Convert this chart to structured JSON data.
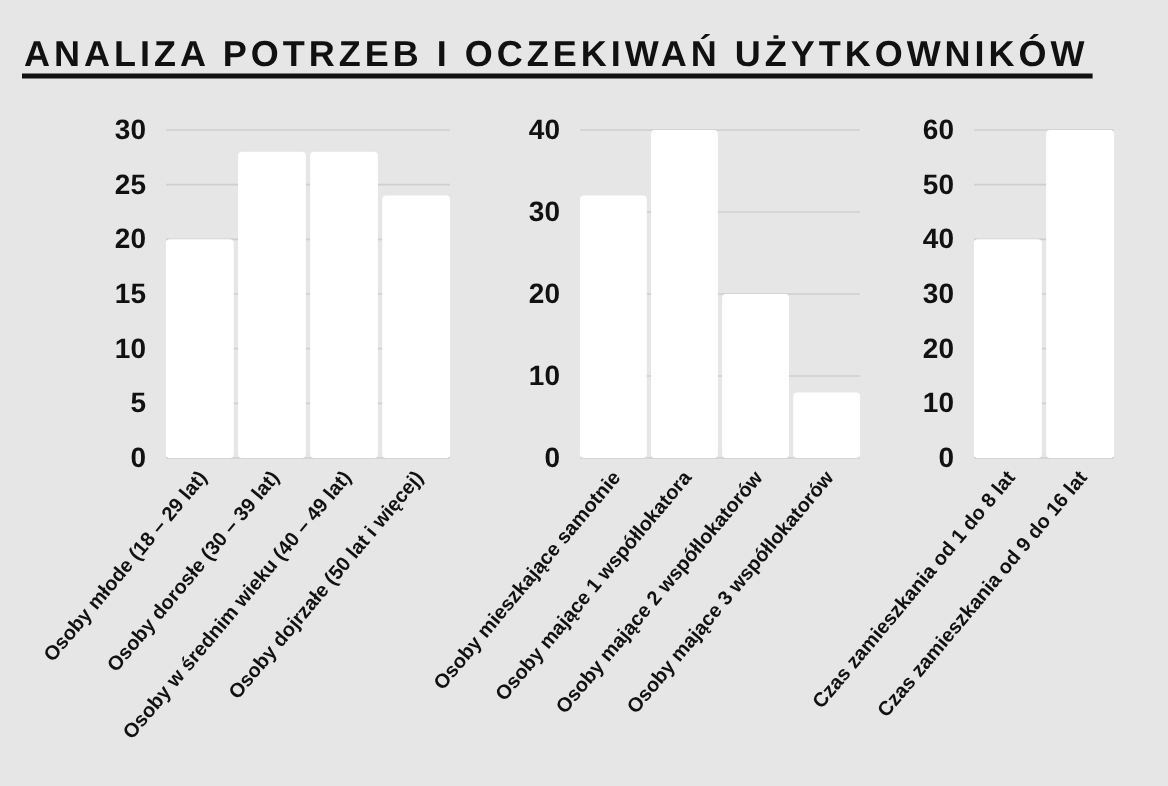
{
  "chart_data": [
    {
      "type": "bar",
      "title": "ANALIZA POTRZEB I OCZEKIWAŃ UŻYTKOWNIKÓW",
      "categories": [
        "Osoby młode (18 – 29 lat)",
        "Osoby dorosłe (30 – 39 lat)",
        "Osoby w średnim wieku (40 – 49 lat)",
        "Osoby dojrzałe (50 lat i więcej)"
      ],
      "values": [
        20,
        28,
        28,
        24
      ],
      "color": "#ffffff",
      "ylim": [
        0,
        30
      ],
      "yticks": [
        0,
        5,
        10,
        15,
        20,
        25,
        30
      ],
      "grid": "y"
    },
    {
      "type": "bar",
      "categories": [
        "Osoby mieszkające samotnie",
        "Osoby mające 1 współlokatora",
        "Osoby mające 2 współlokatorów",
        "Osoby mające 3 współlokatorów"
      ],
      "values": [
        32,
        40,
        20,
        8
      ],
      "color": "#ffffff",
      "ylim": [
        0,
        40
      ],
      "yticks": [
        0,
        10,
        20,
        30,
        40
      ],
      "grid": "y"
    },
    {
      "type": "bar",
      "categories": [
        "Czas zamieszkania od 1 do 8 lat",
        "Czas zamieszkania od 9 do 16 lat"
      ],
      "values": [
        40,
        60
      ],
      "color": "#ffffff",
      "ylim": [
        0,
        60
      ],
      "yticks": [
        0,
        10,
        20,
        30,
        40,
        50,
        60
      ],
      "grid": "y"
    }
  ]
}
